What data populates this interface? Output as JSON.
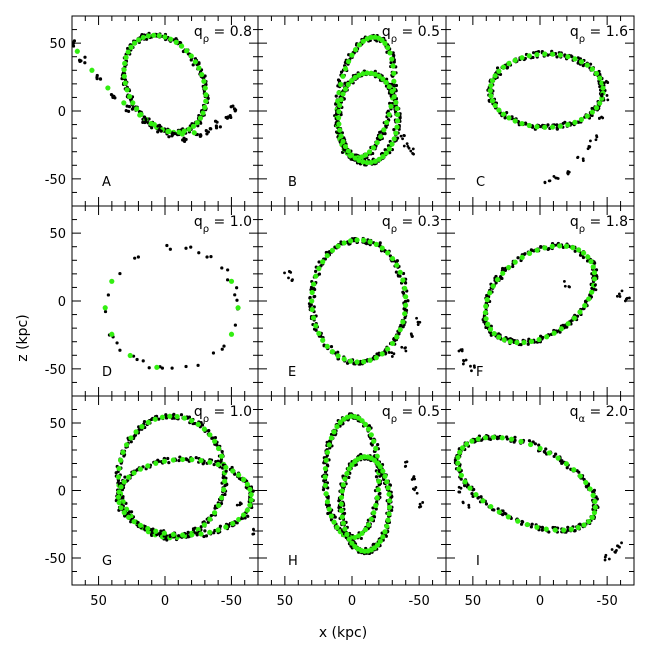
{
  "chart_data": {
    "type": "scatter",
    "xlabel": "x (kpc)",
    "ylabel": "z (kpc)",
    "xlim": [
      70,
      -70
    ],
    "ylim": [
      -70,
      70
    ],
    "xticks": [
      "50",
      "0",
      "-50"
    ],
    "yticks": [
      "50",
      "0",
      "-50"
    ],
    "colors": {
      "particles": "#000000",
      "fit": "#33ee11"
    },
    "panels": [
      {
        "letter": "A",
        "q_symbol": "q",
        "q_sub": "ρ",
        "q_text": " = 0.8",
        "particles": [
          [
            70,
            50
          ],
          [
            62,
            38
          ],
          [
            50,
            24
          ],
          [
            38,
            12
          ],
          [
            27,
            2
          ],
          [
            15,
            -6
          ],
          [
            5,
            -13
          ],
          [
            -5,
            -18
          ],
          [
            -15,
            -20
          ],
          [
            -25,
            -19
          ],
          [
            -33,
            -15
          ],
          [
            -40,
            -10
          ],
          [
            -48,
            -4
          ],
          [
            -52,
            2
          ]
        ],
        "outer_loop": {
          "cx": 0,
          "cy": 20,
          "rx": 28,
          "ry": 38,
          "tilt": -30
        },
        "fit": [
          [
            66,
            44
          ],
          [
            55,
            30
          ],
          [
            43,
            17
          ],
          [
            31,
            6
          ],
          [
            19,
            -3
          ],
          [
            8,
            -10
          ],
          [
            -3,
            -15
          ],
          [
            -13,
            -17
          ],
          [
            -22,
            -16
          ]
        ]
      },
      {
        "letter": "B",
        "q_symbol": "q",
        "q_sub": "ρ",
        "q_text": " = 0.5",
        "loops": [
          {
            "cx": -10,
            "cy": 10,
            "rx": 20,
            "ry": 45,
            "tilt": 10
          },
          {
            "cx": -12,
            "cy": -5,
            "rx": 22,
            "ry": 33,
            "tilt": 0
          }
        ],
        "particles_extra": [
          [
            -38,
            -20
          ],
          [
            -40,
            -25
          ],
          [
            -45,
            -30
          ]
        ]
      },
      {
        "letter": "C",
        "q_symbol": "q",
        "q_sub": "ρ",
        "q_text": " = 1.6",
        "loops": [
          {
            "cx": -5,
            "cy": 15,
            "rx": 42,
            "ry": 27,
            "tilt": 0
          }
        ],
        "particles_extra": [
          [
            -30,
            -35
          ],
          [
            -35,
            -28
          ],
          [
            -40,
            -20
          ],
          [
            -45,
            -5
          ],
          [
            -48,
            10
          ],
          [
            -50,
            20
          ],
          [
            -22,
            -45
          ],
          [
            -12,
            -50
          ],
          [
            -5,
            -52
          ]
        ]
      },
      {
        "letter": "D",
        "q_symbol": "q",
        "q_sub": "ρ",
        "q_text": " = 1.0",
        "loops": [
          {
            "cx": -5,
            "cy": -5,
            "rx": 50,
            "ry": 45,
            "tilt": 0
          }
        ],
        "sparse": true
      },
      {
        "letter": "E",
        "q_symbol": "q",
        "q_sub": "ρ",
        "q_text": " = 0.3",
        "loops": [
          {
            "cx": -5,
            "cy": 0,
            "rx": 35,
            "ry": 45,
            "tilt": 0
          }
        ],
        "particles_extra": [
          [
            -30,
            -40
          ],
          [
            -38,
            -35
          ],
          [
            -44,
            -25
          ],
          [
            -50,
            -15
          ],
          [
            45,
            15
          ],
          [
            48,
            20
          ]
        ]
      },
      {
        "letter": "F",
        "q_symbol": "q",
        "q_sub": "ρ",
        "q_text": " = 1.8",
        "loops": [
          {
            "cx": 0,
            "cy": 5,
            "rx": 45,
            "ry": 30,
            "tilt": -35
          }
        ],
        "particles_extra": [
          [
            -20,
            12
          ],
          [
            -40,
            10
          ],
          [
            -60,
            5
          ],
          [
            -65,
            0
          ],
          [
            60,
            -35
          ],
          [
            55,
            -45
          ],
          [
            50,
            -50
          ]
        ]
      },
      {
        "letter": "G",
        "q_symbol": "q",
        "q_sub": "ρ",
        "q_text": " = 1.0",
        "loops": [
          {
            "cx": -5,
            "cy": 10,
            "rx": 40,
            "ry": 45,
            "tilt": 0
          },
          {
            "cx": -15,
            "cy": -5,
            "rx": 50,
            "ry": 28,
            "tilt": 0
          }
        ],
        "particles_extra": [
          [
            -55,
            -10
          ],
          [
            -60,
            -20
          ],
          [
            -65,
            -30
          ]
        ]
      },
      {
        "letter": "H",
        "q_symbol": "q",
        "q_sub": "ρ",
        "q_text": " = 0.5",
        "loops": [
          {
            "cx": 0,
            "cy": 10,
            "rx": 20,
            "ry": 45,
            "tilt": 0
          },
          {
            "cx": -10,
            "cy": -10,
            "rx": 18,
            "ry": 35,
            "tilt": 0
          }
        ],
        "particles_extra": [
          [
            -40,
            20
          ],
          [
            -45,
            10
          ],
          [
            -48,
            0
          ],
          [
            -52,
            -10
          ]
        ]
      },
      {
        "letter": "I",
        "q_symbol": "q",
        "q_sub": "α",
        "q_text": " = 2.0",
        "loops": [
          {
            "cx": 10,
            "cy": 5,
            "rx": 55,
            "ry": 28,
            "tilt": 25
          }
        ],
        "particles_extra": [
          [
            60,
            0
          ],
          [
            55,
            -10
          ],
          [
            -60,
            -40
          ],
          [
            -55,
            -45
          ],
          [
            -50,
            -50
          ]
        ]
      }
    ]
  }
}
